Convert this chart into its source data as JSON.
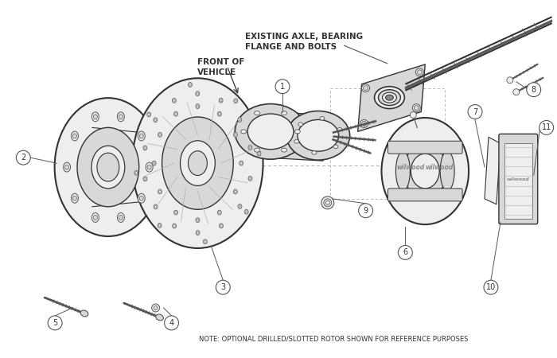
{
  "bg_color": "#ffffff",
  "lc": "#555555",
  "lc_dark": "#333333",
  "gray_light": "#d8d8d8",
  "gray_mid": "#b0b0b0",
  "gray_dark": "#888888",
  "gray_vlight": "#eeeeee",
  "note_text": "NOTE: OPTIONAL DRILLED/SLOTTED ROTOR SHOWN FOR REFERENCE PURPOSES",
  "label_axle": "EXISTING AXLE, BEARING\nFLANGE AND BOLTS",
  "label_front": "FRONT OF\nVEHICLE",
  "figsize": [
    7.0,
    4.5
  ],
  "dpi": 100
}
